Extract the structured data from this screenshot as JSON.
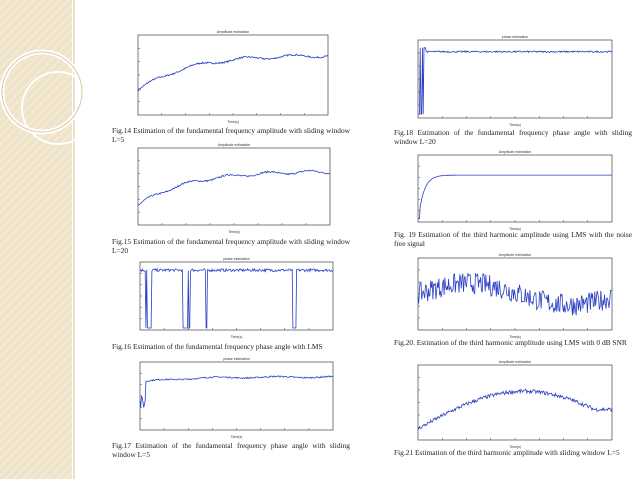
{
  "figures": [
    {
      "title": "Amplitude estimation",
      "xlabel": "Time(s)",
      "caption": "Fig.14 Estimation of the fundamental frequency amplitude with sliding window L=5"
    },
    {
      "title": "Amplitude estimation",
      "xlabel": "Time(s)",
      "caption": "Fig.15 Estimation of the fundamental frequency amplitude with sliding window L=20"
    },
    {
      "title": "phase estimation",
      "xlabel": "Time(s)",
      "caption": "Fig.16 Estimation of the fundamental frequency phase angle with LMS"
    },
    {
      "title": "phase estimation",
      "xlabel": "Time(s)",
      "caption": "Fig.17 Estimation of the fundamental frequency phase angle with sliding window L=5"
    },
    {
      "title": "phase estimation",
      "xlabel": "Time(s)",
      "caption": "Fig.18 Estimation of the fundamental frequency phase angle with sliding window L=20"
    },
    {
      "title": "Amplitude estimation",
      "xlabel": "Time(s)",
      "caption": "Fig. 19 Estimation of the third harmonic amplitude using LMS with the noise free signal"
    },
    {
      "title": "Amplitude estimation",
      "xlabel": "Time(s)",
      "caption": "Fig.20. Estimation of the third harmonic amplitude using LMS with 0 dB SNR"
    },
    {
      "title": "Amplitude estimation",
      "xlabel": "Time(s)",
      "caption": "Fig.21 Estimation of the third harmonic amplitude with sliding window L=5"
    }
  ]
}
